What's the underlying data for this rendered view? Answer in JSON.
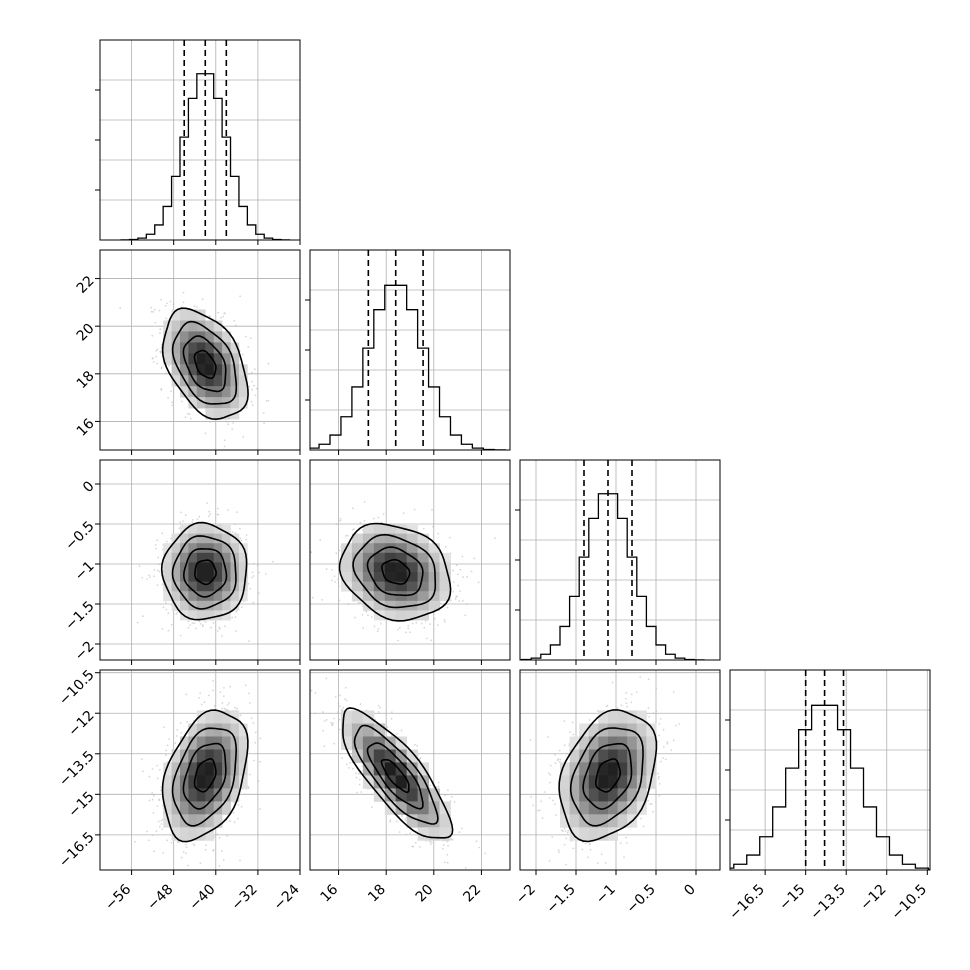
{
  "chart_data": {
    "type": "corner",
    "parameters": [
      {
        "ticks": [
          -56,
          -48,
          -40,
          -32,
          -24
        ],
        "range": [
          -62,
          -24
        ],
        "mean": -42.0,
        "sd": 4.0,
        "quantiles": [
          -46.0,
          -42.0,
          -38.0
        ],
        "hist_peak": 1.06,
        "hist_max": 1.25
      },
      {
        "ticks": [
          16,
          18,
          20,
          22
        ],
        "range": [
          14.8,
          23.2
        ],
        "mean": 18.4,
        "sd": 1.15,
        "quantiles": [
          17.25,
          18.4,
          19.55
        ],
        "hist_peak": 1.05,
        "hist_max": 1.25
      },
      {
        "ticks": [
          -2.0,
          -1.5,
          -1.0,
          -0.5,
          0.0
        ],
        "range": [
          -2.2,
          0.3
        ],
        "mean": -1.1,
        "sd": 0.3,
        "quantiles": [
          -1.4,
          -1.1,
          -0.8
        ],
        "hist_peak": 1.06,
        "hist_max": 1.25
      },
      {
        "ticks": [
          -16.5,
          -15.0,
          -13.5,
          -12.0,
          -10.5
        ],
        "range": [
          -17.8,
          -10.4
        ],
        "mean": -14.3,
        "sd": 1.2,
        "quantiles": [
          -15.0,
          -14.3,
          -13.6
        ],
        "hist_peak": 1.05,
        "hist_max": 1.25
      }
    ],
    "correlations": [
      {
        "pair": [
          0,
          1
        ],
        "rho": -0.4
      },
      {
        "pair": [
          0,
          2
        ],
        "rho": 0.0
      },
      {
        "pair": [
          1,
          2
        ],
        "rho": -0.2
      },
      {
        "pair": [
          0,
          3
        ],
        "rho": 0.35
      },
      {
        "pair": [
          1,
          3
        ],
        "rho": -0.8
      },
      {
        "pair": [
          2,
          3
        ],
        "rho": 0.3
      }
    ],
    "contour_levels": [
      0.5,
      1.0,
      1.5,
      2.0
    ],
    "grid": true,
    "colors": {
      "hist": "#000000",
      "quantile_line": "#000000",
      "density": "#000000",
      "samples": "#bdbdbd",
      "grid": "#b0b0b0"
    }
  }
}
